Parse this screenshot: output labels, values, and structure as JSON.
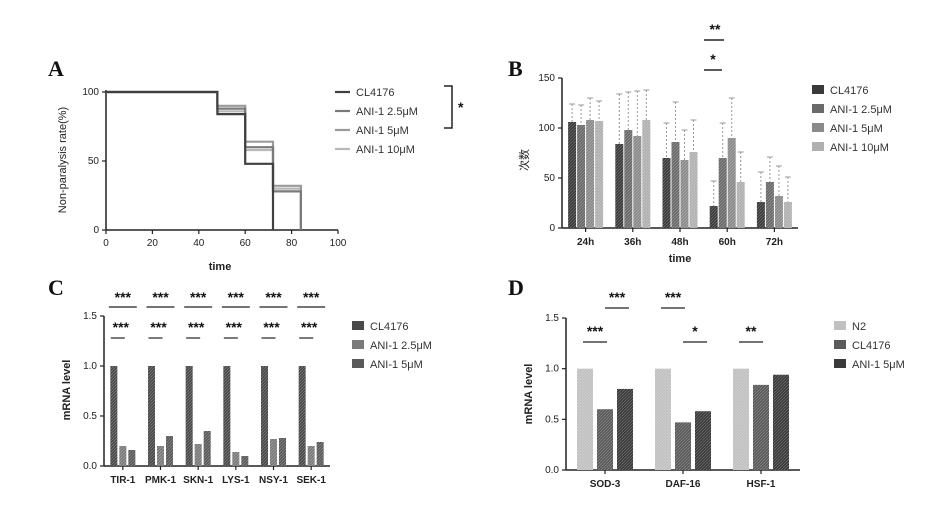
{
  "colors": {
    "black": "#3a3a3a",
    "dark": "#505050",
    "mid": "#7a7a7a",
    "light": "#a8a8a8",
    "lighter": "#c4c4c4"
  },
  "chart_data": [
    {
      "id": "A",
      "panel": "A",
      "type": "line",
      "subtype": "kaplan-meier step",
      "xlabel": "time",
      "ylabel": "Non-paralysis rate(%)",
      "xlim": [
        0,
        100
      ],
      "ylim": [
        0,
        100
      ],
      "xticks": [
        "0",
        "20",
        "40",
        "60",
        "80",
        "100"
      ],
      "yticks": [
        "0",
        "50",
        "100"
      ],
      "legend_position": "right",
      "series": [
        {
          "name": "CL4176",
          "color": "#404040",
          "x": [
            0,
            48,
            48,
            60,
            60,
            72,
            72
          ],
          "y": [
            100,
            100,
            84,
            84,
            48,
            48,
            0
          ]
        },
        {
          "name": "ANI-1 2.5μM",
          "color": "#7a7a7a",
          "x": [
            0,
            48,
            48,
            60,
            60,
            72,
            72,
            84,
            84
          ],
          "y": [
            100,
            100,
            88,
            88,
            60,
            60,
            28,
            28,
            0
          ]
        },
        {
          "name": "ANI-1 5μM",
          "color": "#9a9a9a",
          "x": [
            0,
            48,
            48,
            60,
            60,
            72,
            72,
            84,
            84
          ],
          "y": [
            100,
            100,
            90,
            90,
            64,
            64,
            32,
            32,
            0
          ]
        },
        {
          "name": "ANI-1 10μM",
          "color": "#b8b8b8",
          "x": [
            0,
            48,
            48,
            60,
            60,
            72,
            72,
            84,
            84
          ],
          "y": [
            100,
            100,
            86,
            86,
            58,
            58,
            30,
            30,
            0
          ]
        }
      ],
      "bracket_label": "*"
    },
    {
      "id": "B",
      "panel": "B",
      "type": "bar",
      "xlabel": "time",
      "ylabel": "次数",
      "ylim": [
        0,
        150
      ],
      "yticks": [
        "0",
        "50",
        "100",
        "150"
      ],
      "categories": [
        "24h",
        "36h",
        "48h",
        "60h",
        "72h"
      ],
      "legend_position": "right",
      "series": [
        {
          "name": "CL4176",
          "color": "#3a3a3a",
          "values": [
            106,
            84,
            70,
            22,
            26
          ],
          "err": [
            18,
            50,
            35,
            25,
            30
          ]
        },
        {
          "name": "ANI-1 2.5μM",
          "color": "#6a6a6a",
          "values": [
            103,
            98,
            86,
            70,
            46
          ],
          "err": [
            20,
            38,
            40,
            35,
            25
          ]
        },
        {
          "name": "ANI-1 5μM",
          "color": "#8a8a8a",
          "values": [
            108,
            92,
            68,
            90,
            32
          ],
          "err": [
            22,
            45,
            30,
            40,
            30
          ]
        },
        {
          "name": "ANI-1 10μM",
          "color": "#b0b0b0",
          "values": [
            107,
            108,
            76,
            46,
            26
          ],
          "err": [
            20,
            30,
            32,
            30,
            25
          ]
        }
      ],
      "annotations": [
        "**",
        "*"
      ]
    },
    {
      "id": "C",
      "panel": "C",
      "type": "bar",
      "xlabel": "",
      "ylabel": "mRNA level",
      "ylim": [
        0,
        1.5
      ],
      "yticks": [
        "0.0",
        "0.5",
        "1.0",
        "1.5"
      ],
      "categories": [
        "TIR-1",
        "PMK-1",
        "SKN-1",
        "LYS-1",
        "NSY-1",
        "SEK-1"
      ],
      "legend_position": "right",
      "series": [
        {
          "name": "CL4176",
          "color": "#4a4a4a",
          "values": [
            1.0,
            1.0,
            1.0,
            1.0,
            1.0,
            1.0
          ]
        },
        {
          "name": "ANI-1 2.5μM",
          "color": "#7a7a7a",
          "values": [
            0.2,
            0.2,
            0.22,
            0.14,
            0.27,
            0.2
          ]
        },
        {
          "name": "ANI-1 5μM",
          "color": "#5a5a5a",
          "values": [
            0.16,
            0.3,
            0.35,
            0.1,
            0.28,
            0.24
          ]
        }
      ],
      "annotations": [
        "***",
        "***"
      ]
    },
    {
      "id": "D",
      "panel": "D",
      "type": "bar",
      "xlabel": "",
      "ylabel": "mRNA level",
      "ylim": [
        0,
        1.5
      ],
      "yticks": [
        "0.0",
        "0.5",
        "1.0",
        "1.5"
      ],
      "categories": [
        "SOD-3",
        "DAF-16",
        "HSF-1"
      ],
      "legend_position": "right",
      "series": [
        {
          "name": "N2",
          "color": "#c0c0c0",
          "values": [
            1.0,
            1.0,
            1.0
          ]
        },
        {
          "name": "CL4176",
          "color": "#5a5a5a",
          "values": [
            0.6,
            0.47,
            0.84
          ]
        },
        {
          "name": "ANI-1 5μM",
          "color": "#3a3a3a",
          "values": [
            0.8,
            0.58,
            0.94
          ]
        }
      ],
      "annotations": {
        "SOD-3": [
          "***",
          "***"
        ],
        "DAF-16": [
          "***",
          "*"
        ],
        "HSF-1": [
          "**"
        ]
      }
    }
  ]
}
